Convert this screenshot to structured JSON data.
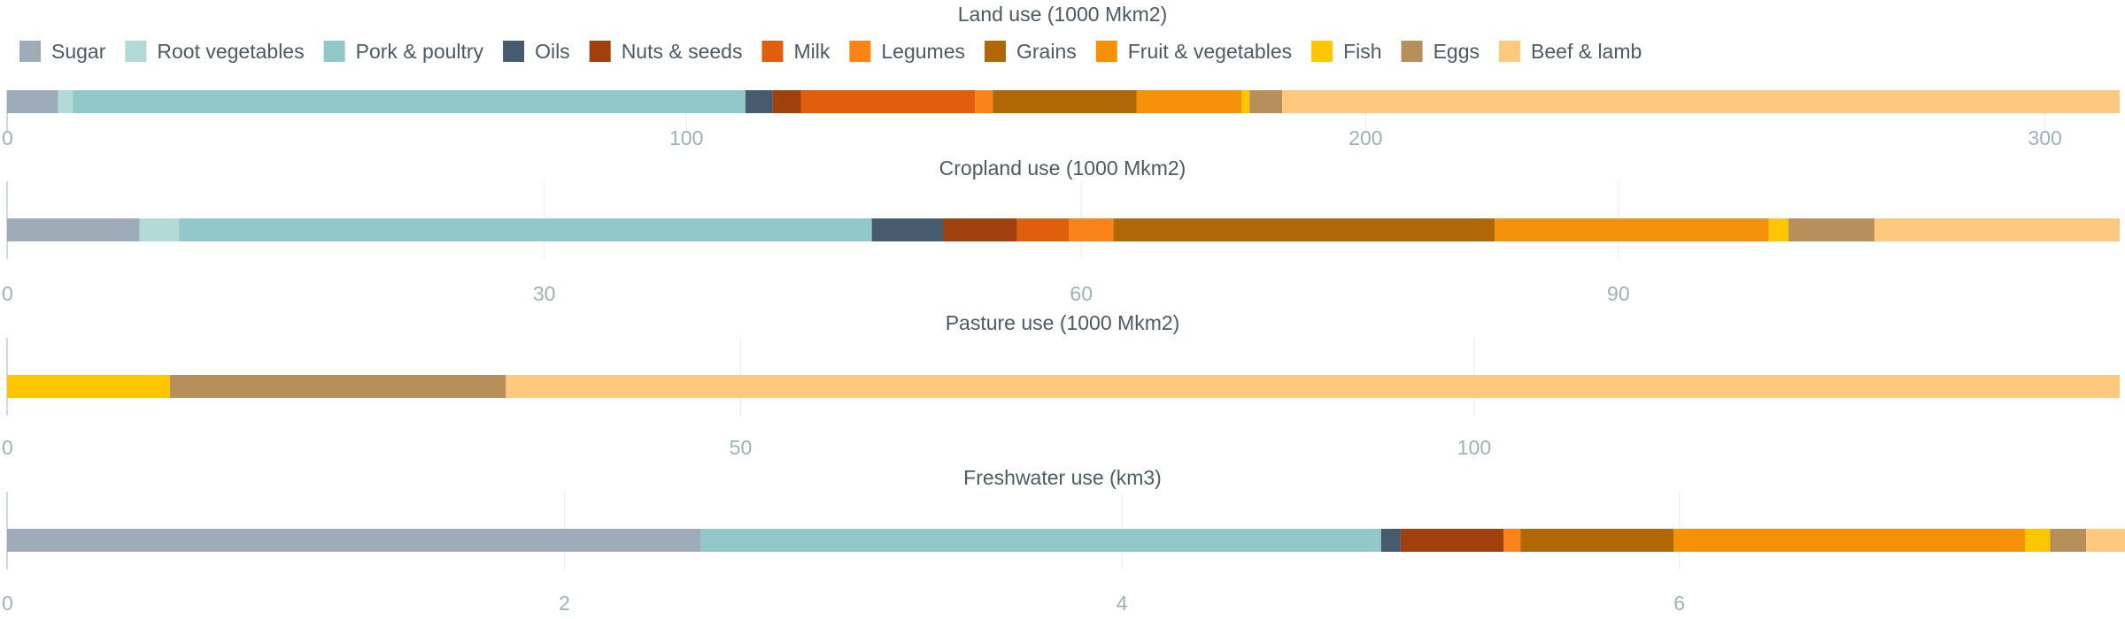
{
  "chart_data": {
    "type": "bar",
    "orientation": "horizontal-stacked",
    "legend": {
      "position": "top",
      "entries": [
        {
          "name": "Sugar",
          "color": "#9eabb9"
        },
        {
          "name": "Root vegetables",
          "color": "#b2dbd8"
        },
        {
          "name": "Pork & poultry",
          "color": "#93c8c9"
        },
        {
          "name": "Oils",
          "color": "#465c6e"
        },
        {
          "name": "Nuts & seeds",
          "color": "#a0410d"
        },
        {
          "name": "Milk",
          "color": "#e05f0c"
        },
        {
          "name": "Legumes",
          "color": "#fb8317"
        },
        {
          "name": "Grains",
          "color": "#b06705"
        },
        {
          "name": "Fruit & vegetables",
          "color": "#f49108"
        },
        {
          "name": "Fish",
          "color": "#fec601"
        },
        {
          "name": "Eggs",
          "color": "#b68f5b"
        },
        {
          "name": "Beef & lamb",
          "color": "#fec97e"
        }
      ]
    },
    "charts": [
      {
        "title": "Land use (1000 Mkm2)",
        "xlim": [
          0,
          311
        ],
        "ticks": [
          {
            "value": 0,
            "label": "0"
          },
          {
            "value": 100,
            "label": "100"
          },
          {
            "value": 200,
            "label": "200"
          },
          {
            "value": 300,
            "label": "300"
          }
        ],
        "values": [
          {
            "series": "Sugar",
            "value": 7.5
          },
          {
            "series": "Root vegetables",
            "value": 2.2
          },
          {
            "series": "Pork & poultry",
            "value": 99.0
          },
          {
            "series": "Oils",
            "value": 4.0
          },
          {
            "series": "Nuts & seeds",
            "value": 4.2
          },
          {
            "series": "Milk",
            "value": 25.6
          },
          {
            "series": "Legumes",
            "value": 2.6
          },
          {
            "series": "Grains",
            "value": 21.2
          },
          {
            "series": "Fruit & vegetables",
            "value": 15.4
          },
          {
            "series": "Fish",
            "value": 1.2
          },
          {
            "series": "Eggs",
            "value": 4.8
          },
          {
            "series": "Beef & lamb",
            "value": 123.3
          }
        ]
      },
      {
        "title": "Cropland use (1000 Mkm2)",
        "xlim": [
          0,
          118
        ],
        "ticks": [
          {
            "value": 0,
            "label": "0"
          },
          {
            "value": 30,
            "label": "30"
          },
          {
            "value": 60,
            "label": "60"
          },
          {
            "value": 90,
            "label": "90"
          }
        ],
        "values": [
          {
            "series": "Sugar",
            "value": 7.4
          },
          {
            "series": "Root vegetables",
            "value": 2.2
          },
          {
            "series": "Pork & poultry",
            "value": 38.7
          },
          {
            "series": "Oils",
            "value": 4.0
          },
          {
            "series": "Nuts & seeds",
            "value": 4.1
          },
          {
            "series": "Milk",
            "value": 2.9
          },
          {
            "series": "Legumes",
            "value": 2.5
          },
          {
            "series": "Grains",
            "value": 21.3
          },
          {
            "series": "Fruit & vegetables",
            "value": 15.3
          },
          {
            "series": "Fish",
            "value": 1.1
          },
          {
            "series": "Eggs",
            "value": 4.8
          },
          {
            "series": "Beef & lamb",
            "value": 13.7
          }
        ]
      },
      {
        "title": "Pasture use (1000 Mkm2)",
        "xlim": [
          0,
          144
        ],
        "ticks": [
          {
            "value": 0,
            "label": "0"
          },
          {
            "value": 50,
            "label": "50"
          },
          {
            "value": 100,
            "label": "100"
          }
        ],
        "values": [
          {
            "series": "Fish",
            "value": 11.1
          },
          {
            "series": "Eggs",
            "value": 22.9
          },
          {
            "series": "Beef & lamb",
            "value": 110.0
          }
        ]
      },
      {
        "title": "Freshwater use (km3)",
        "xlim": [
          0,
          7.58
        ],
        "ticks": [
          {
            "value": 0,
            "label": "0"
          },
          {
            "value": 2,
            "label": "2"
          },
          {
            "value": 4,
            "label": "4"
          },
          {
            "value": 6,
            "label": "6"
          }
        ],
        "values": [
          {
            "series": "Sugar",
            "value": 2.49
          },
          {
            "series": "Pork & poultry",
            "value": 2.44
          },
          {
            "series": "Oils",
            "value": 0.07
          },
          {
            "series": "Nuts & seeds",
            "value": 0.37
          },
          {
            "series": "Legumes",
            "value": 0.06
          },
          {
            "series": "Grains",
            "value": 0.55
          },
          {
            "series": "Fruit & vegetables",
            "value": 1.26
          },
          {
            "series": "Fish",
            "value": 0.09
          },
          {
            "series": "Eggs",
            "value": 0.13
          },
          {
            "series": "Beef & lamb",
            "value": 0.14
          }
        ]
      }
    ]
  }
}
